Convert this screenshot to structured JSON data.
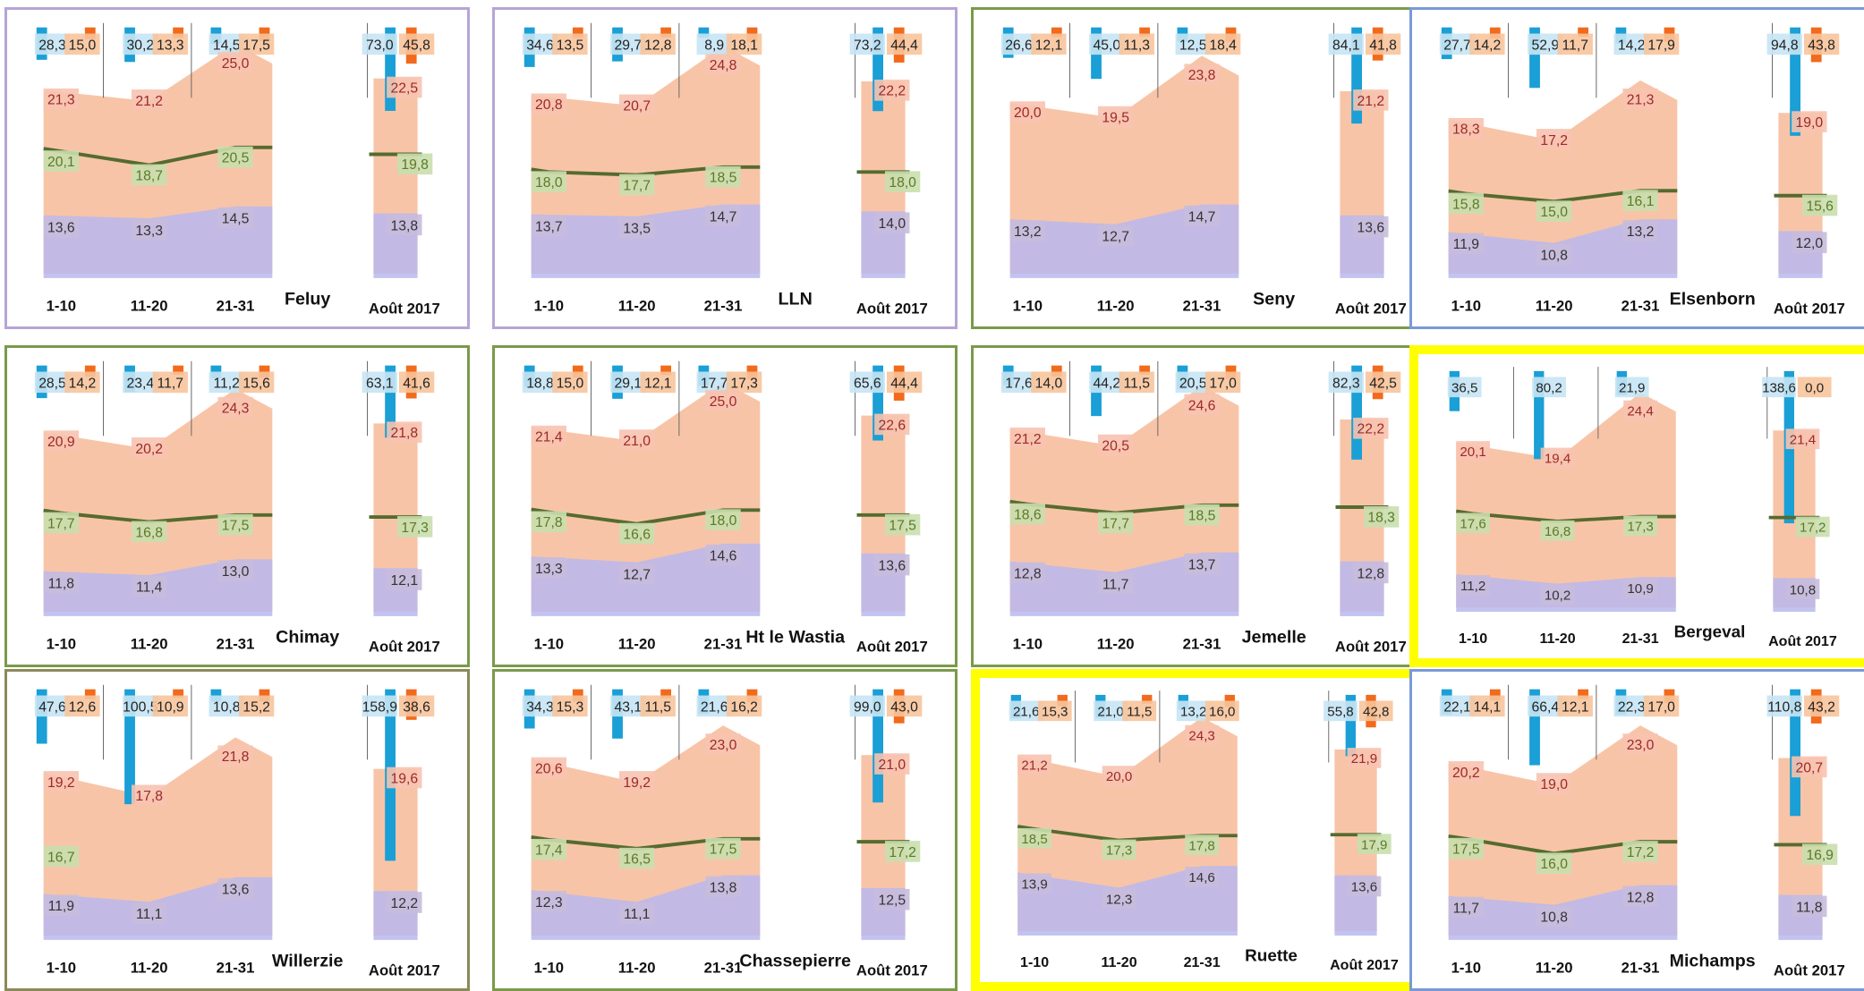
{
  "colors": {
    "mean_line": "#556b2f",
    "frame_purple": "#b7a4d6",
    "frame_green": "#7a9a4a",
    "frame_blue": "#7a9ad6",
    "frame_yellow": "#ffff00",
    "frame_olive": "#8a8a5a",
    "max_band": "#f6b08a",
    "min_band": "#b9b9ee",
    "label_green": "#c9dfae",
    "label_red": "#f7c3b0",
    "label_purple": "#c8bcdc",
    "label_orange": "#f7c49c"
  },
  "chart_data": [
    {
      "type": "area",
      "station": "Feluy",
      "frame": "purple",
      "categories": [
        "1-10",
        "11-20",
        "21-31"
      ],
      "month_label": "Août 2017",
      "rain": [
        28.3,
        30.2,
        14.5
      ],
      "sun": [
        15.0,
        13.3,
        17.5
      ],
      "rain_month": 73.0,
      "sun_month": 45.8,
      "mean": [
        20.1,
        18.7,
        20.5
      ],
      "mean_month": 19.8,
      "max": [
        21.3,
        21.2,
        25.0
      ],
      "max_month": 22.5,
      "min": [
        13.6,
        13.3,
        14.5
      ],
      "min_month": 13.8
    },
    {
      "type": "area",
      "station": "LLN",
      "frame": "purple",
      "categories": [
        "1-10",
        "11-20",
        "21-31"
      ],
      "month_label": "Août 2017",
      "rain": [
        34.6,
        29.7,
        8.9
      ],
      "sun": [
        13.5,
        12.8,
        18.1
      ],
      "rain_month": 73.2,
      "sun_month": 44.4,
      "mean": [
        18.0,
        17.7,
        18.5
      ],
      "mean_month": 18.0,
      "max": [
        20.8,
        20.7,
        24.8
      ],
      "max_month": 22.2,
      "min": [
        13.7,
        13.5,
        14.7
      ],
      "min_month": 14.0
    },
    {
      "type": "area",
      "station": "Seny",
      "frame": "green",
      "categories": [
        "1-10",
        "11-20",
        "21-31"
      ],
      "month_label": "Août 2017",
      "rain": [
        26.6,
        45.0,
        12.5
      ],
      "sun": [
        12.1,
        11.3,
        18.4
      ],
      "rain_month": 84.1,
      "sun_month": 41.8,
      "mean": null,
      "mean_month": null,
      "max": [
        20.0,
        19.5,
        23.8
      ],
      "max_month": 21.2,
      "min": [
        13.2,
        12.7,
        14.7
      ],
      "min_month": 13.6
    },
    {
      "type": "area",
      "station": "Elsenborn",
      "frame": "blue",
      "categories": [
        "1-10",
        "11-20",
        "21-31"
      ],
      "month_label": "Août 2017",
      "rain": [
        27.7,
        52.9,
        14.2
      ],
      "sun": [
        14.2,
        11.7,
        17.9
      ],
      "rain_month": 94.8,
      "sun_month": 43.8,
      "mean": [
        15.8,
        15.0,
        16.1
      ],
      "mean_month": 15.6,
      "max": [
        18.3,
        17.2,
        21.3
      ],
      "max_month": 19.0,
      "min": [
        11.9,
        10.8,
        13.2
      ],
      "min_month": 12.0
    },
    {
      "type": "area",
      "station": "Chimay",
      "frame": "green",
      "categories": [
        "1-10",
        "11-20",
        "21-31"
      ],
      "month_label": "Août 2017",
      "rain": [
        28.5,
        23.4,
        11.2
      ],
      "sun": [
        14.2,
        11.7,
        15.6
      ],
      "rain_month": 63.1,
      "sun_month": 41.6,
      "mean": [
        17.7,
        16.8,
        17.5
      ],
      "mean_month": 17.3,
      "max": [
        20.9,
        20.2,
        24.3
      ],
      "max_month": 21.8,
      "min": [
        11.8,
        11.4,
        13.0
      ],
      "min_month": 12.1
    },
    {
      "type": "area",
      "station": "Ht le Wastia",
      "frame": "green",
      "categories": [
        "1-10",
        "11-20",
        "21-31"
      ],
      "month_label": "Août 2017",
      "rain": [
        18.8,
        29.1,
        17.7
      ],
      "sun": [
        15.0,
        12.1,
        17.3
      ],
      "rain_month": 65.6,
      "sun_month": 44.4,
      "mean": [
        17.8,
        16.6,
        18.0
      ],
      "mean_month": 17.5,
      "max": [
        21.4,
        21.0,
        25.0
      ],
      "max_month": 22.6,
      "min": [
        13.3,
        12.7,
        14.6
      ],
      "min_month": 13.6
    },
    {
      "type": "area",
      "station": "Jemelle",
      "frame": "green",
      "categories": [
        "1-10",
        "11-20",
        "21-31"
      ],
      "month_label": "Août 2017",
      "rain": [
        17.6,
        44.2,
        20.5
      ],
      "sun": [
        14.0,
        11.5,
        17.0
      ],
      "rain_month": 82.3,
      "sun_month": 42.5,
      "mean": [
        18.6,
        17.7,
        18.5
      ],
      "mean_month": 18.3,
      "max": [
        21.2,
        20.5,
        24.6
      ],
      "max_month": 22.2,
      "min": [
        12.8,
        11.7,
        13.7
      ],
      "min_month": 12.8
    },
    {
      "type": "area",
      "station": "Bergeval",
      "frame": "yellow",
      "categories": [
        "1-10",
        "11-20",
        "21-31"
      ],
      "month_label": "Août 2017",
      "rain": [
        36.5,
        80.2,
        21.9
      ],
      "sun": [
        null,
        null,
        null
      ],
      "rain_month": 138.6,
      "sun_month": 0.0,
      "mean": [
        17.6,
        16.8,
        17.3
      ],
      "mean_month": 17.2,
      "max": [
        20.1,
        19.4,
        24.4
      ],
      "max_month": 21.4,
      "min": [
        11.2,
        10.2,
        10.9
      ],
      "min_month": 10.8
    },
    {
      "type": "area",
      "station": "Willerzie",
      "frame": "olive",
      "categories": [
        "1-10",
        "11-20",
        "21-31"
      ],
      "month_label": "Août 2017",
      "rain": [
        47.6,
        100.5,
        10.8
      ],
      "sun": [
        12.6,
        10.9,
        15.2
      ],
      "rain_month": 158.9,
      "sun_month": 38.6,
      "mean": [
        16.7,
        null,
        null
      ],
      "mean_month": null,
      "max": [
        19.2,
        17.8,
        21.8
      ],
      "max_month": 19.6,
      "min": [
        11.9,
        11.1,
        13.6
      ],
      "min_month": 12.2
    },
    {
      "type": "area",
      "station": "Chassepierre",
      "frame": "green",
      "categories": [
        "1-10",
        "11-20",
        "21-31"
      ],
      "month_label": "Août 2017",
      "rain": [
        34.3,
        43.1,
        21.6
      ],
      "sun": [
        15.3,
        11.5,
        16.2
      ],
      "rain_month": 99.0,
      "sun_month": 43.0,
      "mean": [
        17.4,
        16.5,
        17.5
      ],
      "mean_month": 17.2,
      "max": [
        20.6,
        19.2,
        23.0
      ],
      "max_month": 21.0,
      "min": [
        12.3,
        11.1,
        13.8
      ],
      "min_month": 12.5
    },
    {
      "type": "area",
      "station": "Ruette",
      "frame": "yellow",
      "categories": [
        "1-10",
        "11-20",
        "21-31"
      ],
      "month_label": "Août 2017",
      "rain": [
        21.6,
        21.0,
        13.2
      ],
      "sun": [
        15.3,
        11.5,
        16.0
      ],
      "rain_month": 55.8,
      "sun_month": 42.8,
      "mean": [
        18.5,
        17.3,
        17.8
      ],
      "mean_month": 17.9,
      "max": [
        21.2,
        20.0,
        24.3
      ],
      "max_month": 21.9,
      "min": [
        13.9,
        12.3,
        14.6
      ],
      "min_month": 13.6
    },
    {
      "type": "area",
      "station": "Michamps",
      "frame": "blue",
      "categories": [
        "1-10",
        "11-20",
        "21-31"
      ],
      "month_label": "Août 2017",
      "rain": [
        22.1,
        66.4,
        22.3
      ],
      "sun": [
        14.1,
        12.1,
        17.0
      ],
      "rain_month": 110.8,
      "sun_month": 43.2,
      "mean": [
        17.5,
        16.0,
        17.2
      ],
      "mean_month": 16.9,
      "max": [
        20.2,
        19.0,
        23.0
      ],
      "max_month": 20.7,
      "min": [
        11.7,
        10.8,
        12.8
      ],
      "min_month": 11.8
    }
  ]
}
